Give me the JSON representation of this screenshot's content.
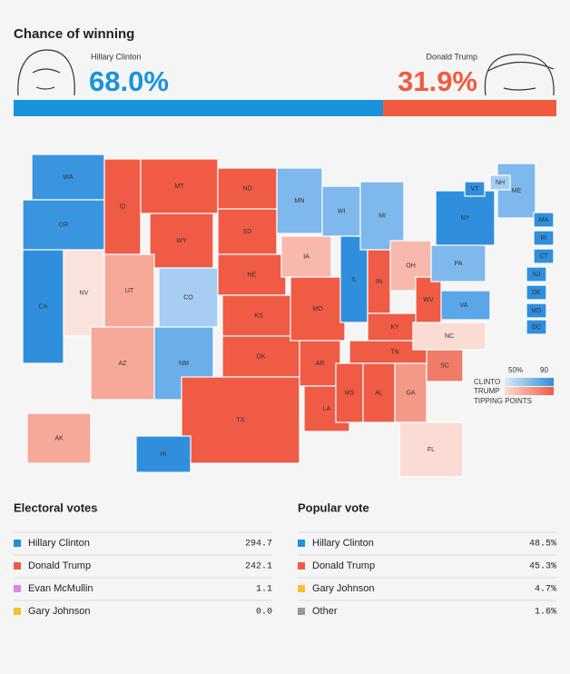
{
  "header": {
    "title": "Chance of winning"
  },
  "candidates": [
    {
      "name": "Hillary Clinton",
      "chance": 68.0,
      "chance_label": "68.0%",
      "color": "#1a93dd"
    },
    {
      "name": "Donald Trump",
      "chance": 31.9,
      "chance_label": "31.9%",
      "color": "#f05b3f"
    }
  ],
  "map": {
    "states": [
      {
        "abbr": "WA",
        "color": "#3a95e0"
      },
      {
        "abbr": "OR",
        "color": "#3a95e0"
      },
      {
        "abbr": "CA",
        "color": "#2f8fdc"
      },
      {
        "abbr": "NV",
        "color": "#fbe3dd"
      },
      {
        "abbr": "ID",
        "color": "#ef5b45"
      },
      {
        "abbr": "MT",
        "color": "#ef5b45"
      },
      {
        "abbr": "WY",
        "color": "#ef5b45"
      },
      {
        "abbr": "UT",
        "color": "#f6a899"
      },
      {
        "abbr": "CO",
        "color": "#a6cdf2"
      },
      {
        "abbr": "AZ",
        "color": "#f6a899"
      },
      {
        "abbr": "NM",
        "color": "#6aaeea"
      },
      {
        "abbr": "ND",
        "color": "#ef5b45"
      },
      {
        "abbr": "SD",
        "color": "#ef5b45"
      },
      {
        "abbr": "NE",
        "color": "#ef5b45"
      },
      {
        "abbr": "KS",
        "color": "#ef5b45"
      },
      {
        "abbr": "OK",
        "color": "#ef5b45"
      },
      {
        "abbr": "TX",
        "color": "#ef5b45"
      },
      {
        "abbr": "MN",
        "color": "#7fb8ec"
      },
      {
        "abbr": "IA",
        "color": "#f8b8ab"
      },
      {
        "abbr": "MO",
        "color": "#ef5b45"
      },
      {
        "abbr": "AR",
        "color": "#ef5b45"
      },
      {
        "abbr": "LA",
        "color": "#ef5b45"
      },
      {
        "abbr": "WI",
        "color": "#7fb8ec"
      },
      {
        "abbr": "IL",
        "color": "#2f8fdc"
      },
      {
        "abbr": "MI",
        "color": "#7fb8ec"
      },
      {
        "abbr": "IN",
        "color": "#ef5b45"
      },
      {
        "abbr": "OH",
        "color": "#f8b8ab"
      },
      {
        "abbr": "KY",
        "color": "#ef5b45"
      },
      {
        "abbr": "TN",
        "color": "#ef5b45"
      },
      {
        "abbr": "MS",
        "color": "#ef5b45"
      },
      {
        "abbr": "AL",
        "color": "#ef5b45"
      },
      {
        "abbr": "GA",
        "color": "#f59987"
      },
      {
        "abbr": "FL",
        "color": "#fbdcd5"
      },
      {
        "abbr": "SC",
        "color": "#f07b67"
      },
      {
        "abbr": "NC",
        "color": "#fbdcd5"
      },
      {
        "abbr": "VA",
        "color": "#5aa6e8"
      },
      {
        "abbr": "WV",
        "color": "#ef5b45"
      },
      {
        "abbr": "PA",
        "color": "#7fb8ec"
      },
      {
        "abbr": "NY",
        "color": "#2f8fdc"
      },
      {
        "abbr": "ME",
        "color": "#7fb8ec"
      },
      {
        "abbr": "VT",
        "color": "#2f8fdc"
      },
      {
        "abbr": "NH",
        "color": "#a6cdf2"
      },
      {
        "abbr": "MA",
        "color": "#2f8fdc"
      },
      {
        "abbr": "RI",
        "color": "#2f8fdc"
      },
      {
        "abbr": "CT",
        "color": "#2f8fdc"
      },
      {
        "abbr": "NJ",
        "color": "#2f8fdc"
      },
      {
        "abbr": "DE",
        "color": "#2f8fdc"
      },
      {
        "abbr": "MD",
        "color": "#2f8fdc"
      },
      {
        "abbr": "DC",
        "color": "#2f8fdc"
      },
      {
        "abbr": "AK",
        "color": "#f6a899"
      },
      {
        "abbr": "HI",
        "color": "#2f8fdc"
      }
    ],
    "legend": {
      "low": "50%",
      "high": "90",
      "clinton": "CLINTO",
      "trump": "TRUMP",
      "tipping": "TIPPING POINTS",
      "clinton_colors": [
        "#dbe9f8",
        "#2f8fdc"
      ],
      "trump_colors": [
        "#fbdcd5",
        "#ef5b45"
      ]
    }
  },
  "electoral": {
    "title": "Electoral votes",
    "rows": [
      {
        "name": "Hillary Clinton",
        "value": "294.7",
        "color": "#1a93dd"
      },
      {
        "name": "Donald Trump",
        "value": "242.1",
        "color": "#f05b3f"
      },
      {
        "name": "Evan McMullin",
        "value": "1.1",
        "color": "#d88be0"
      },
      {
        "name": "Gary Johnson",
        "value": "0.0",
        "color": "#f2c230"
      }
    ]
  },
  "popular": {
    "title": "Popular vote",
    "rows": [
      {
        "name": "Hillary Clinton",
        "value": "48.5%",
        "color": "#1a93dd"
      },
      {
        "name": "Donald Trump",
        "value": "45.3%",
        "color": "#f05b3f"
      },
      {
        "name": "Gary Johnson",
        "value": "4.7%",
        "color": "#f2c230"
      },
      {
        "name": "Other",
        "value": "1.6%",
        "color": "#999999"
      }
    ]
  }
}
